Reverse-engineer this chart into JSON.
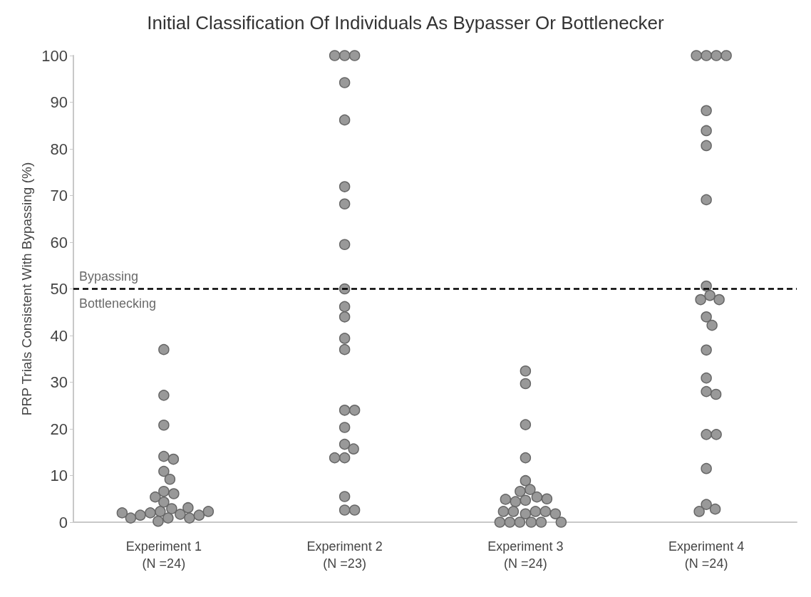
{
  "chart_data": {
    "type": "scatter",
    "title": "Initial Classification Of Individuals As Bypasser Or Bottlenecker",
    "ylabel": "PRP Trials Consistent With Bypassing (%)",
    "categories": [
      "Experiment 1\n(N =24)",
      "Experiment 2\n(N =23)",
      "Experiment 3\n(N =24)",
      "Experiment 4\n(N =24)"
    ],
    "series": [
      {
        "color": "#999999",
        "x": [
          "Experiment 1\n(N =24)",
          "Experiment 1\n(N =24)",
          "Experiment 1\n(N =24)",
          "Experiment 1\n(N =24)",
          "Experiment 1\n(N =24)",
          "Experiment 1\n(N =24)",
          "Experiment 1\n(N =24)",
          "Experiment 1\n(N =24)",
          "Experiment 1\n(N =24)",
          "Experiment 1\n(N =24)",
          "Experiment 1\n(N =24)",
          "Experiment 1\n(N =24)",
          "Experiment 1\n(N =24)",
          "Experiment 1\n(N =24)",
          "Experiment 1\n(N =24)",
          "Experiment 1\n(N =24)",
          "Experiment 1\n(N =24)",
          "Experiment 1\n(N =24)",
          "Experiment 1\n(N =24)",
          "Experiment 1\n(N =24)",
          "Experiment 1\n(N =24)",
          "Experiment 1\n(N =24)",
          "Experiment 1\n(N =24)",
          "Experiment 1\n(N =24)"
        ],
        "values": [
          37.0,
          27.2,
          20.8,
          14.1,
          13.5,
          10.9,
          9.2,
          6.6,
          6.1,
          5.4,
          4.3,
          2.9,
          2.3,
          2.0,
          1.7,
          1.5,
          0.9,
          0.2,
          0.9,
          0.9,
          1.5,
          2.0,
          2.3,
          3.1
        ]
      },
      {
        "color": "#999999",
        "x": [
          "Experiment 2\n(N =23)",
          "Experiment 2\n(N =23)",
          "Experiment 2\n(N =23)",
          "Experiment 2\n(N =23)",
          "Experiment 2\n(N =23)",
          "Experiment 2\n(N =23)",
          "Experiment 2\n(N =23)",
          "Experiment 2\n(N =23)",
          "Experiment 2\n(N =23)",
          "Experiment 2\n(N =23)",
          "Experiment 2\n(N =23)",
          "Experiment 2\n(N =23)",
          "Experiment 2\n(N =23)",
          "Experiment 2\n(N =23)",
          "Experiment 2\n(N =23)",
          "Experiment 2\n(N =23)",
          "Experiment 2\n(N =23)",
          "Experiment 2\n(N =23)",
          "Experiment 2\n(N =23)",
          "Experiment 2\n(N =23)",
          "Experiment 2\n(N =23)",
          "Experiment 2\n(N =23)",
          "Experiment 2\n(N =23)"
        ],
        "values": [
          100,
          100,
          100,
          94.2,
          86.2,
          71.9,
          68.2,
          59.5,
          50.0,
          46.2,
          44.0,
          39.4,
          37.0,
          24.0,
          24.0,
          20.3,
          16.7,
          15.7,
          13.8,
          13.8,
          5.5,
          2.6,
          2.6
        ]
      },
      {
        "color": "#999999",
        "x": [
          "Experiment 3\n(N =24)",
          "Experiment 3\n(N =24)",
          "Experiment 3\n(N =24)",
          "Experiment 3\n(N =24)",
          "Experiment 3\n(N =24)",
          "Experiment 3\n(N =24)",
          "Experiment 3\n(N =24)",
          "Experiment 3\n(N =24)",
          "Experiment 3\n(N =24)",
          "Experiment 3\n(N =24)",
          "Experiment 3\n(N =24)",
          "Experiment 3\n(N =24)",
          "Experiment 3\n(N =24)",
          "Experiment 3\n(N =24)",
          "Experiment 3\n(N =24)",
          "Experiment 3\n(N =24)",
          "Experiment 3\n(N =24)",
          "Experiment 3\n(N =24)",
          "Experiment 3\n(N =24)",
          "Experiment 3\n(N =24)",
          "Experiment 3\n(N =24)",
          "Experiment 3\n(N =24)",
          "Experiment 3\n(N =24)",
          "Experiment 3\n(N =24)"
        ],
        "values": [
          32.4,
          29.7,
          20.9,
          13.8,
          8.9,
          7.0,
          6.6,
          5.4,
          4.7,
          4.4,
          4.9,
          5.0,
          1.8,
          2.3,
          2.3,
          2.3,
          2.3,
          1.8,
          0,
          0,
          0,
          0,
          0,
          0
        ]
      },
      {
        "color": "#999999",
        "x": [
          "Experiment 4\n(N =24)",
          "Experiment 4\n(N =24)",
          "Experiment 4\n(N =24)",
          "Experiment 4\n(N =24)",
          "Experiment 4\n(N =24)",
          "Experiment 4\n(N =24)",
          "Experiment 4\n(N =24)",
          "Experiment 4\n(N =24)",
          "Experiment 4\n(N =24)",
          "Experiment 4\n(N =24)",
          "Experiment 4\n(N =24)",
          "Experiment 4\n(N =24)",
          "Experiment 4\n(N =24)",
          "Experiment 4\n(N =24)",
          "Experiment 4\n(N =24)",
          "Experiment 4\n(N =24)",
          "Experiment 4\n(N =24)",
          "Experiment 4\n(N =24)",
          "Experiment 4\n(N =24)",
          "Experiment 4\n(N =24)",
          "Experiment 4\n(N =24)",
          "Experiment 4\n(N =24)",
          "Experiment 4\n(N =24)",
          "Experiment 4\n(N =24)"
        ],
        "values": [
          100,
          100,
          100,
          100,
          88.2,
          83.9,
          80.7,
          69.1,
          50.6,
          48.6,
          47.7,
          47.7,
          44.0,
          42.2,
          36.9,
          30.9,
          28.0,
          27.4,
          18.8,
          18.8,
          11.5,
          3.8,
          2.8,
          2.3
        ]
      }
    ],
    "ylim": [
      0,
      100
    ],
    "yticks": [
      0,
      10,
      20,
      30,
      40,
      50,
      60,
      70,
      80,
      90,
      100
    ],
    "grid": false,
    "marker": "circle",
    "ref_lines": [
      {
        "axis": "y",
        "value": 50,
        "color": "#000000",
        "line_style": "dashed"
      }
    ],
    "annotations": [
      "Bypassing",
      "Bottlenecking"
    ]
  }
}
